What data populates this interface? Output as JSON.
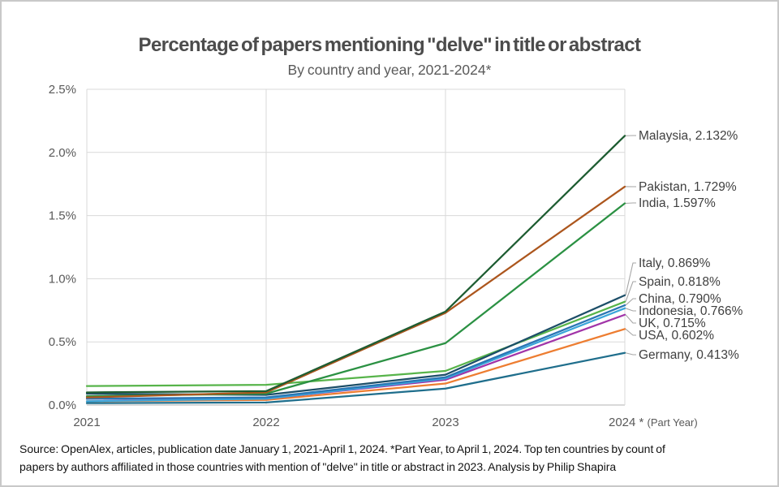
{
  "title": "Percentage of papers mentioning \"delve\" in title or abstract",
  "subtitle": "By country and year, 2021-2024*",
  "footer_lines": [
    "Source: OpenAlex, articles, publication date January 1, 2021-April 1, 2024. *Part Year, to April 1, 2024. Top ten countries by count of",
    "papers by authors affiliated in those countries with mention of \"delve\" in title or abstract in 2023. Analysis by Philip Shapira"
  ],
  "colors": {
    "gridline": "#d9d9d9",
    "axis_line": "#b3b3b3",
    "tick_text": "#595959",
    "series_label_text": "#3f3f3f",
    "leader_line": "#a6a6a6"
  },
  "chart_data": {
    "type": "line",
    "x_ticks": [
      {
        "label": "2021"
      },
      {
        "label": "2022"
      },
      {
        "label": "2023"
      },
      {
        "label": "2024 *",
        "suffix": "(Part Year)"
      }
    ],
    "ylim": [
      0,
      2.5
    ],
    "ytick_labels": [
      "0.0%",
      "0.5%",
      "1.0%",
      "1.5%",
      "2.0%",
      "2.5%"
    ],
    "grid": true,
    "legend_position": "right-edge-data-labels",
    "series": [
      {
        "name": "Malaysia",
        "color": "#1d5c31",
        "values": [
          0.1,
          0.11,
          0.74,
          2.132
        ],
        "label": "Malaysia, 2.132%"
      },
      {
        "name": "Pakistan",
        "color": "#ac561d",
        "values": [
          0.06,
          0.1,
          0.73,
          1.729
        ],
        "label": "Pakistan, 1.729%"
      },
      {
        "name": "India",
        "color": "#2b9143",
        "values": [
          0.07,
          0.09,
          0.49,
          1.597
        ],
        "label": "India, 1.597%"
      },
      {
        "name": "Italy",
        "color": "#1c4e68",
        "values": [
          0.09,
          0.08,
          0.24,
          0.869
        ],
        "label": "Italy, 0.869%"
      },
      {
        "name": "Spain",
        "color": "#57b44a",
        "values": [
          0.15,
          0.16,
          0.27,
          0.818
        ],
        "label": "Spain, 0.818%"
      },
      {
        "name": "China",
        "color": "#2a76b4",
        "values": [
          0.05,
          0.06,
          0.22,
          0.79
        ],
        "label": "China, 0.790%"
      },
      {
        "name": "Indonesia",
        "color": "#3aa5da",
        "values": [
          0.03,
          0.05,
          0.21,
          0.766
        ],
        "label": "Indonesia, 0.766%"
      },
      {
        "name": "UK",
        "color": "#a134a8",
        "values": [
          0.05,
          0.05,
          0.2,
          0.715
        ],
        "label": "UK, 0.715%"
      },
      {
        "name": "USA",
        "color": "#ed7d31",
        "values": [
          0.03,
          0.04,
          0.17,
          0.602
        ],
        "label": "USA, 0.602%"
      },
      {
        "name": "Germany",
        "color": "#1f6e8c",
        "values": [
          0.015,
          0.02,
          0.13,
          0.413
        ],
        "label": "Germany, 0.413%"
      }
    ]
  }
}
